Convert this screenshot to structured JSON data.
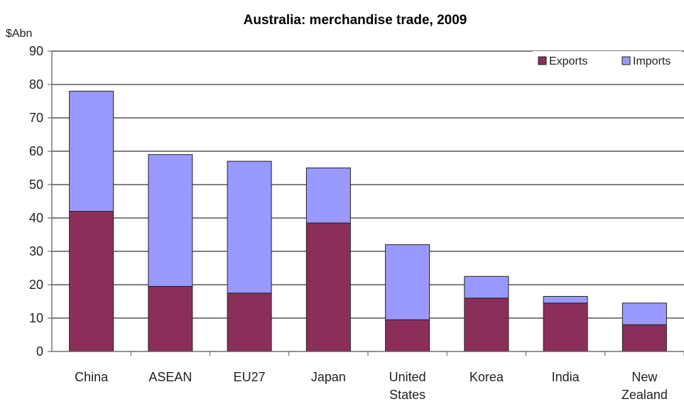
{
  "chart_data": {
    "type": "bar",
    "stacked": true,
    "title": "Australia: merchandise trade, 2009",
    "ylabel": "$Abn",
    "xlabel": "",
    "ylim": [
      0,
      90
    ],
    "yticks": [
      0,
      10,
      20,
      30,
      40,
      50,
      60,
      70,
      80,
      90
    ],
    "grid": true,
    "legend_position": "top-right",
    "categories": [
      [
        "China"
      ],
      [
        "ASEAN"
      ],
      [
        "EU27"
      ],
      [
        "Japan"
      ],
      [
        "United",
        "States"
      ],
      [
        "Korea"
      ],
      [
        "India"
      ],
      [
        "New",
        "Zealand"
      ]
    ],
    "series": [
      {
        "name": "Exports",
        "color": "#8b2f5a",
        "values": [
          42,
          19.5,
          17.5,
          38.5,
          9.5,
          16,
          14.5,
          8
        ]
      },
      {
        "name": "Imports",
        "color": "#9999ff",
        "values": [
          36,
          39.5,
          39.5,
          16.5,
          22.5,
          6.5,
          2,
          6.5
        ]
      }
    ]
  }
}
